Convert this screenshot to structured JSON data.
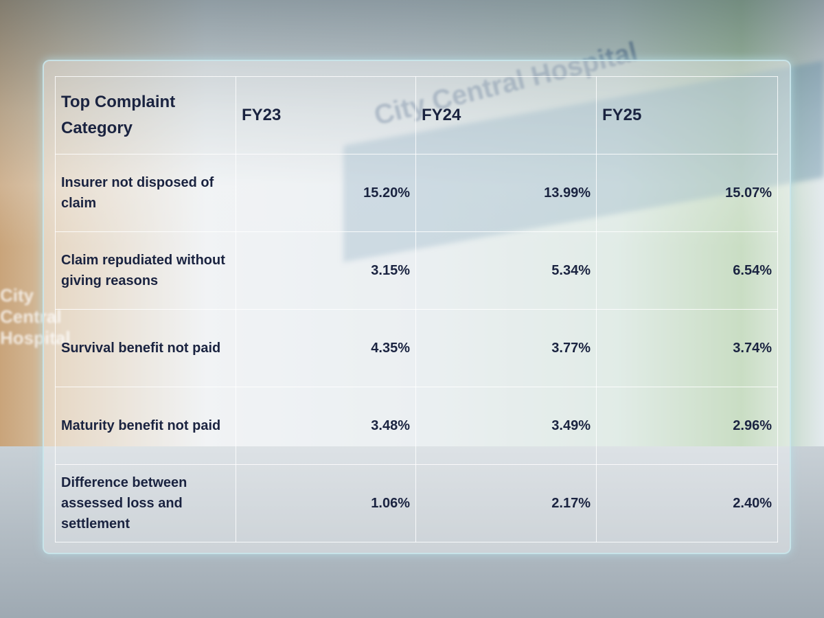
{
  "background": {
    "sign": "City Central Hospital"
  },
  "table": {
    "header": [
      "Top Complaint Category",
      "FY23",
      "FY24",
      "FY25"
    ],
    "rows": [
      [
        "Insurer not disposed of claim",
        "15.20%",
        "13.99%",
        "15.07%"
      ],
      [
        "Claim repudiated without giving reasons",
        "3.15%",
        "5.34%",
        "6.54%"
      ],
      [
        "Survival benefit not paid",
        "4.35%",
        "3.77%",
        "3.74%"
      ],
      [
        "Maturity benefit not paid",
        "3.48%",
        "3.49%",
        "2.96%"
      ],
      [
        "Difference between assessed loss and settlement",
        "1.06%",
        "2.17%",
        "2.40%"
      ]
    ]
  }
}
